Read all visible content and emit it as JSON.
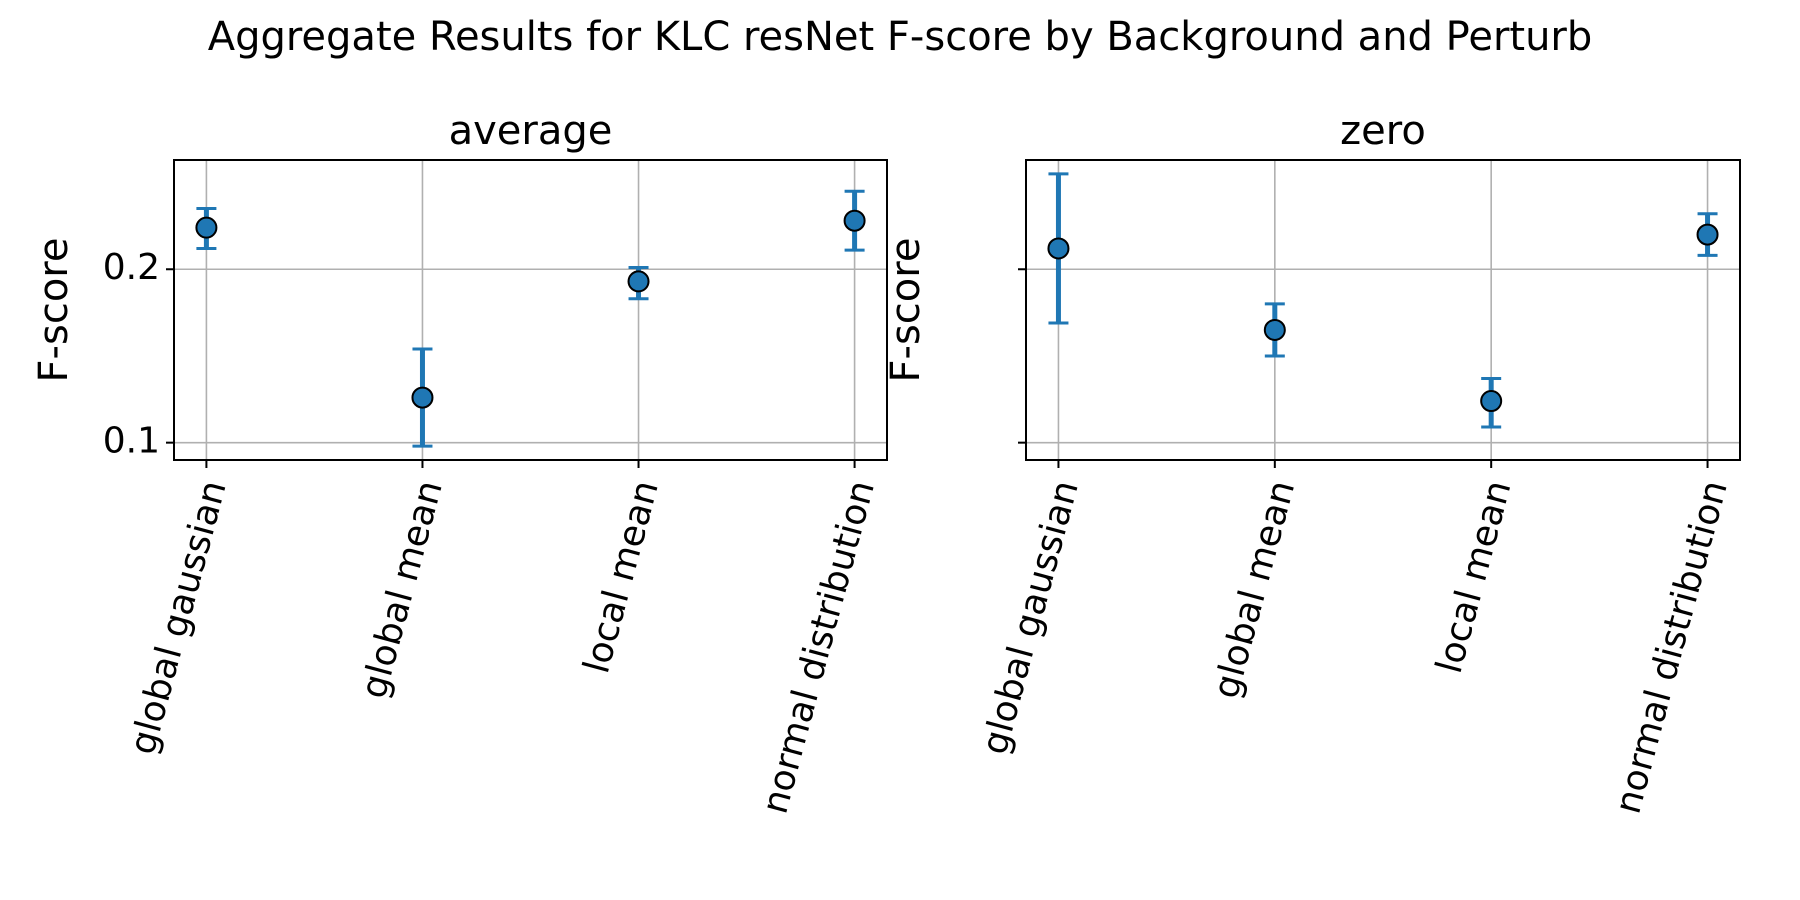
{
  "figure": {
    "suptitle": "Aggregate Results for KLC resNet F-score by Background and Perturb"
  },
  "colors": {
    "series": "#1f77b4",
    "grid": "#b0b0b0",
    "marker_edge": "#000000"
  },
  "chart_data": [
    {
      "type": "scatter",
      "title": "average",
      "xlabel": "",
      "ylabel": "F-score",
      "categories": [
        "global gaussian",
        "global mean",
        "local mean",
        "normal distribution"
      ],
      "yticks": [
        0.1,
        0.2
      ],
      "ytick_labels": [
        "0.1",
        "0.2"
      ],
      "ylim": [
        0.09,
        0.263
      ],
      "grid": true,
      "series": [
        {
          "values": [
            0.224,
            0.126,
            0.193,
            0.228
          ],
          "err_low": [
            0.212,
            0.098,
            0.183,
            0.211
          ],
          "err_high": [
            0.235,
            0.154,
            0.201,
            0.245
          ]
        }
      ]
    },
    {
      "type": "scatter",
      "title": "zero",
      "xlabel": "",
      "ylabel": "F-score",
      "categories": [
        "global gaussian",
        "global mean",
        "local mean",
        "normal distribution"
      ],
      "yticks": [
        0.1,
        0.2
      ],
      "ytick_labels": [
        "",
        ""
      ],
      "ylim": [
        0.09,
        0.263
      ],
      "grid": true,
      "series": [
        {
          "values": [
            0.212,
            0.165,
            0.124,
            0.22
          ],
          "err_low": [
            0.169,
            0.15,
            0.109,
            0.208
          ],
          "err_high": [
            0.255,
            0.18,
            0.137,
            0.232
          ]
        }
      ]
    }
  ]
}
